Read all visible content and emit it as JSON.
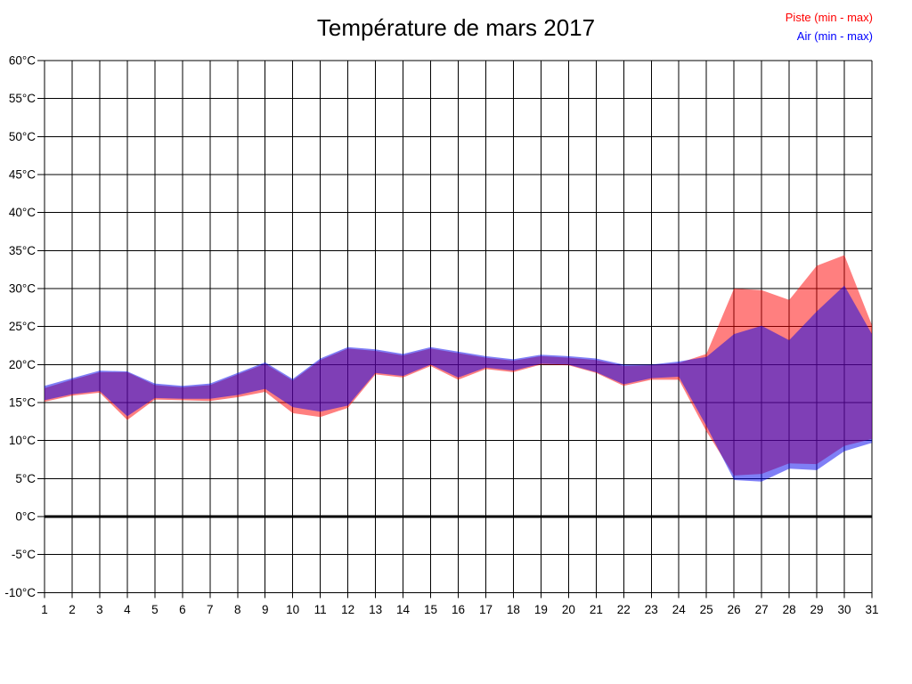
{
  "title": "Température de mars 2017",
  "legend": [
    {
      "label": "Piste (min - max)",
      "color": "#ff0000"
    },
    {
      "label": "Air (min - max)",
      "color": "#0000ff"
    }
  ],
  "chart_data": {
    "type": "area",
    "subtype": "min-max bands, two overlapping translucent series",
    "title": "Température de mars 2017",
    "xlabel": "",
    "ylabel": "",
    "xlim": [
      1,
      31
    ],
    "ylim": [
      -10,
      60
    ],
    "grid": true,
    "zero_line": true,
    "legend_position": "top-right",
    "x": [
      1,
      2,
      3,
      4,
      5,
      6,
      7,
      8,
      9,
      10,
      11,
      12,
      13,
      14,
      15,
      16,
      17,
      18,
      19,
      20,
      21,
      22,
      23,
      24,
      25,
      26,
      27,
      28,
      29,
      30,
      31
    ],
    "x_tick_labels": [
      "1",
      "2",
      "3",
      "4",
      "5",
      "6",
      "7",
      "8",
      "9",
      "10",
      "11",
      "12",
      "13",
      "14",
      "15",
      "16",
      "17",
      "18",
      "19",
      "20",
      "21",
      "22",
      "23",
      "24",
      "25",
      "26",
      "27",
      "28",
      "29",
      "30",
      "31"
    ],
    "y_tick_values": [
      60,
      55,
      50,
      45,
      40,
      35,
      30,
      25,
      20,
      15,
      10,
      5,
      0,
      -5,
      -10
    ],
    "y_tick_labels": [
      "60°C",
      "55°C",
      "50°C",
      "45°C",
      "40°C",
      "35°C",
      "30°C",
      "25°C",
      "20°C",
      "15°C",
      "10°C",
      "5°C",
      "0°C",
      "-5°C",
      "-10°C"
    ],
    "series": [
      {
        "name": "Piste (min - max)",
        "slug": "piste-band",
        "color": "#ff0000",
        "fill_opacity": 0.5,
        "min": [
          15.1,
          15.9,
          16.3,
          12.7,
          15.4,
          15.3,
          15.2,
          15.7,
          16.4,
          13.6,
          13.1,
          14.3,
          18.7,
          18.3,
          19.8,
          18.0,
          19.4,
          19.0,
          20.0,
          19.9,
          18.9,
          17.2,
          18.0,
          18.0,
          11.2,
          5.4,
          5.6,
          7.0,
          6.9,
          9.3,
          10.2
        ],
        "max": [
          16.9,
          18.0,
          19.0,
          19.0,
          17.3,
          17.0,
          17.3,
          18.7,
          20.1,
          17.9,
          20.6,
          22.1,
          21.8,
          21.2,
          22.1,
          21.5,
          20.9,
          20.5,
          21.1,
          20.9,
          20.6,
          19.8,
          19.9,
          20.2,
          21.4,
          30.0,
          29.8,
          28.5,
          33.0,
          34.4,
          25.2
        ]
      },
      {
        "name": "Air (min - max)",
        "slug": "air-band",
        "color": "#0000ee",
        "fill_opacity": 0.5,
        "min": [
          15.3,
          16.1,
          16.5,
          13.2,
          15.6,
          15.5,
          15.5,
          16.0,
          16.8,
          14.4,
          13.8,
          14.6,
          18.9,
          18.5,
          20.0,
          18.3,
          19.6,
          19.2,
          20.1,
          20.0,
          19.0,
          17.4,
          18.2,
          18.4,
          11.9,
          4.8,
          4.6,
          6.3,
          6.1,
          8.6,
          9.7
        ],
        "max": [
          17.2,
          18.2,
          19.2,
          19.1,
          17.5,
          17.2,
          17.5,
          18.9,
          20.3,
          18.1,
          20.8,
          22.3,
          22.0,
          21.4,
          22.3,
          21.7,
          21.1,
          20.7,
          21.3,
          21.1,
          20.8,
          20.0,
          20.0,
          20.4,
          21.0,
          24.0,
          25.1,
          23.2,
          27.0,
          30.4,
          24.0
        ]
      }
    ]
  }
}
